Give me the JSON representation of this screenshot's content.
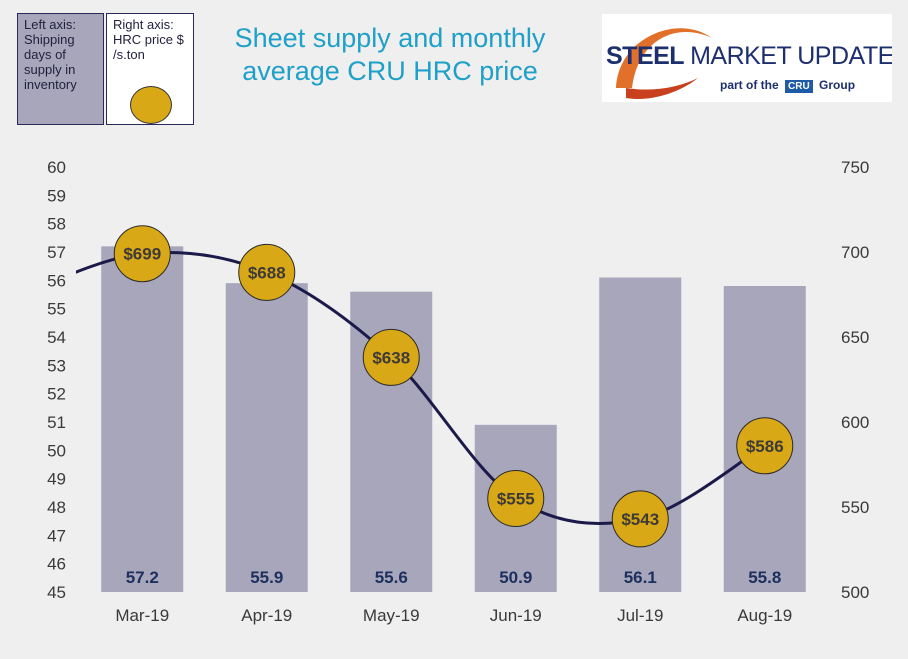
{
  "legend": {
    "left_text": "Left axis: Shipping days of supply in inventory",
    "right_text": "Right axis: HRC price $ /s.ton"
  },
  "title": "Sheet supply and monthly average CRU HRC price",
  "logo": {
    "steel": "STEEL",
    "market_update": "MARKET UPDATE",
    "sub_prefix": "part of the",
    "cru": "CRU",
    "sub_suffix": "Group"
  },
  "colors": {
    "bar": "#a8a6ba",
    "dot": "#d9a816",
    "line": "#1b1a4a",
    "title": "#1ea0c8"
  },
  "chart_data": {
    "type": "bar",
    "title": "Sheet supply and monthly average CRU HRC price",
    "categories": [
      "Mar-19",
      "Apr-19",
      "May-19",
      "Jun-19",
      "Jul-19",
      "Aug-19"
    ],
    "series": [
      {
        "name": "Shipping days of supply in inventory",
        "axis": "left",
        "type": "bar",
        "values": [
          57.2,
          55.9,
          55.6,
          50.9,
          56.1,
          55.8
        ],
        "labels": [
          "57.2",
          "55.9",
          "55.6",
          "50.9",
          "56.1",
          "55.8"
        ]
      },
      {
        "name": "HRC price $ /s.ton",
        "axis": "right",
        "type": "line",
        "values": [
          699,
          688,
          638,
          555,
          543,
          586
        ],
        "labels": [
          "$699",
          "$688",
          "$638",
          "$555",
          "$543",
          "$586"
        ]
      }
    ],
    "left_axis": {
      "ylim": [
        45,
        60
      ],
      "ticks": [
        "45",
        "46",
        "47",
        "48",
        "49",
        "50",
        "51",
        "52",
        "53",
        "54",
        "55",
        "56",
        "57",
        "58",
        "59",
        "60"
      ]
    },
    "right_axis": {
      "ylim": [
        500,
        750
      ],
      "ticks": [
        "500",
        "550",
        "600",
        "650",
        "700",
        "750"
      ]
    }
  }
}
